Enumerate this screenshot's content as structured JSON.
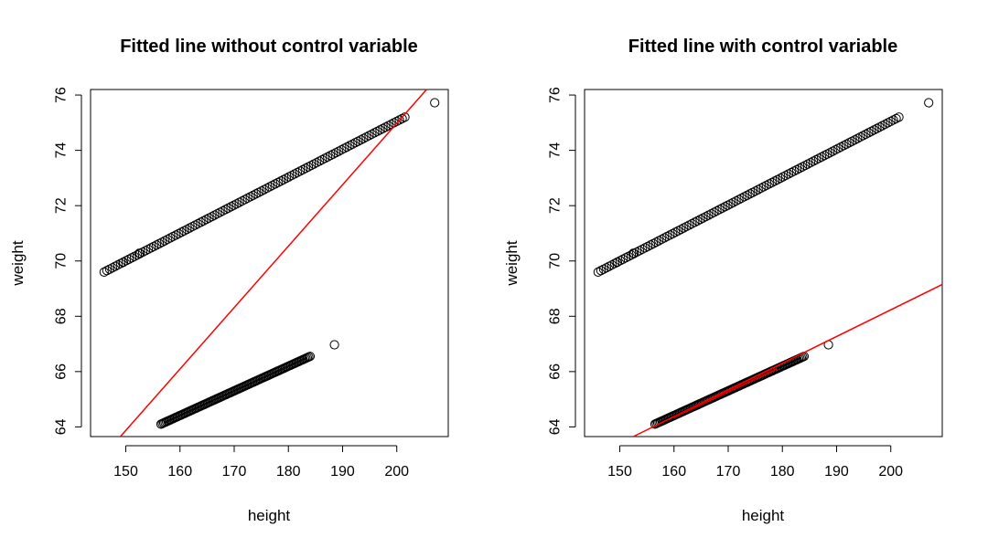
{
  "chart_data": [
    {
      "type": "scatter",
      "title": "Fitted line without control variable",
      "xlabel": "height",
      "ylabel": "weight",
      "xlim": [
        143.5,
        209.5
      ],
      "ylim": [
        63.65,
        76.2
      ],
      "xticks": [
        150,
        160,
        170,
        180,
        190,
        200
      ],
      "yticks": [
        64,
        66,
        68,
        70,
        72,
        74,
        76
      ],
      "grid": false,
      "point_style": "open-circle",
      "series": [
        {
          "segments": [
            {
              "x_from": 146.0,
              "x_to": 201.5,
              "y_at": [
                69.6,
                75.2
              ]
            },
            {
              "x_from": 156.5,
              "x_to": 184.0,
              "y_at": [
                64.1,
                66.55
              ]
            }
          ],
          "extra_points": [
            {
              "x": 207.0,
              "y": 75.72
            },
            {
              "x": 188.5,
              "y": 66.97
            },
            {
              "x": 152.5,
              "y": 70.28
            },
            {
              "x": 149.5,
              "y": 69.95
            }
          ]
        }
      ],
      "fitted_line": {
        "color": "#ff0000",
        "points": [
          {
            "x": 149.0,
            "y": 63.65
          },
          {
            "x": 205.5,
            "y": 76.2
          }
        ]
      }
    },
    {
      "type": "scatter",
      "title": "Fitted line with control variable",
      "xlabel": "height",
      "ylabel": "weight",
      "xlim": [
        143.5,
        209.5
      ],
      "ylim": [
        63.65,
        76.2
      ],
      "xticks": [
        150,
        160,
        170,
        180,
        190,
        200
      ],
      "yticks": [
        64,
        66,
        68,
        70,
        72,
        74,
        76
      ],
      "grid": false,
      "point_style": "open-circle",
      "series": [
        {
          "segments": [
            {
              "x_from": 146.0,
              "x_to": 201.5,
              "y_at": [
                69.6,
                75.2
              ]
            },
            {
              "x_from": 156.5,
              "x_to": 184.0,
              "y_at": [
                64.1,
                66.55
              ]
            }
          ],
          "extra_points": [
            {
              "x": 207.0,
              "y": 75.72
            },
            {
              "x": 188.5,
              "y": 66.97
            },
            {
              "x": 152.5,
              "y": 70.28
            },
            {
              "x": 149.5,
              "y": 69.95
            }
          ]
        }
      ],
      "fitted_line": {
        "color": "#ff0000",
        "points": [
          {
            "x": 152.5,
            "y": 63.65
          },
          {
            "x": 209.5,
            "y": 69.15
          }
        ]
      },
      "highlight_line": {
        "color": "#cc0000",
        "points": [
          {
            "x": 160.0,
            "y": 64.35
          },
          {
            "x": 179.0,
            "y": 66.1
          }
        ]
      }
    }
  ]
}
